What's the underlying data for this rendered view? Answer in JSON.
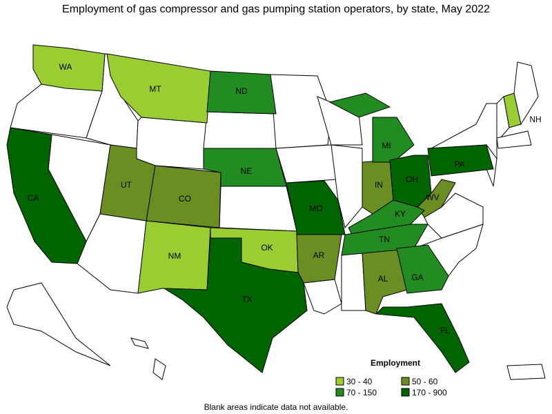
{
  "title": "Employment of gas compressor and gas pumping station operators, by state, May 2022",
  "legend": {
    "title": "Employment",
    "items": [
      {
        "label": "30 - 40",
        "color": "#9acd32",
        "states": [
          "WA",
          "MT",
          "NM",
          "OK",
          "NH"
        ]
      },
      {
        "label": "50 - 60",
        "color": "#6b8e23",
        "states": [
          "UT",
          "CO",
          "AR",
          "AL",
          "IN",
          "WV"
        ]
      },
      {
        "label": "70 - 150",
        "color": "#228b22",
        "states": [
          "ND",
          "NE",
          "MI",
          "KY",
          "TN",
          "GA"
        ]
      },
      {
        "label": "170 - 900",
        "color": "#006400",
        "states": [
          "CA",
          "TX",
          "MO",
          "OH",
          "PA",
          "FL"
        ]
      }
    ]
  },
  "note": "Blank areas indicate data not available."
}
